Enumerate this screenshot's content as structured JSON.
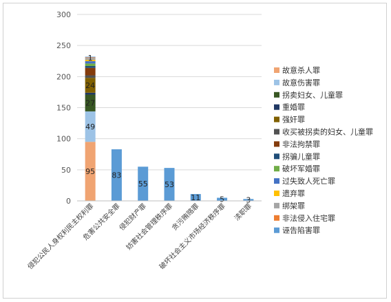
{
  "chart_data": {
    "type": "bar",
    "stacked": true,
    "ylim": [
      0,
      300
    ],
    "yticks": [
      0,
      50,
      100,
      150,
      200,
      250,
      300
    ],
    "grid": true,
    "legend_position": "right",
    "categories": [
      "侵犯公民人身权利民主权利罪",
      "危害公共安全罪",
      "侵犯财产罪",
      "妨害社会管理秩序罪",
      "贪污贿赂罪",
      "破坏社会主义市场经济秩序罪",
      "渎职罪"
    ],
    "simple_bars": {
      "values": [
        null,
        83,
        55,
        53,
        11,
        5,
        3
      ],
      "labels": [
        "",
        "83",
        "55",
        "53",
        "11",
        "5",
        "3"
      ],
      "color": "#5b9bd5"
    },
    "series": [
      {
        "name": "故意杀人罪",
        "color": "#f0a472",
        "values": [
          95,
          null,
          null,
          null,
          null,
          null,
          null
        ],
        "label": "95"
      },
      {
        "name": "故意伤害罪",
        "color": "#9dc3e6",
        "values": [
          49,
          null,
          null,
          null,
          null,
          null,
          null
        ],
        "label": "49"
      },
      {
        "name": "拐卖妇女、儿童罪",
        "color": "#385723",
        "values": [
          27,
          null,
          null,
          null,
          null,
          null,
          null
        ],
        "label": "27"
      },
      {
        "name": "重婚罪",
        "color": "#203864",
        "values": [
          3,
          null,
          null,
          null,
          null,
          null,
          null
        ],
        "label": ""
      },
      {
        "name": "强奸罪",
        "color": "#806000",
        "values": [
          24,
          null,
          null,
          null,
          null,
          null,
          null
        ],
        "label": "24"
      },
      {
        "name": "收买被拐卖的妇女、儿童罪",
        "color": "#525252",
        "values": [
          4,
          null,
          null,
          null,
          null,
          null,
          null
        ],
        "label": ""
      },
      {
        "name": "非法拘禁罪",
        "color": "#843c0c",
        "values": [
          12,
          null,
          null,
          null,
          null,
          null,
          null
        ],
        "label": ""
      },
      {
        "name": "拐骗儿童罪",
        "color": "#1f4e79",
        "values": [
          3,
          null,
          null,
          null,
          null,
          null,
          null
        ],
        "label": ""
      },
      {
        "name": "破坏军婚罪",
        "color": "#70ad47",
        "values": [
          4,
          null,
          null,
          null,
          null,
          null,
          null
        ],
        "label": ""
      },
      {
        "name": "过失致人死亡罪",
        "color": "#4472c4",
        "values": [
          4,
          null,
          null,
          null,
          null,
          null,
          null
        ],
        "label": ""
      },
      {
        "name": "遗弃罪",
        "color": "#ffc000",
        "values": [
          2,
          null,
          null,
          null,
          null,
          null,
          null
        ],
        "label": ""
      },
      {
        "name": "绑架罪",
        "color": "#a5a5a5",
        "values": [
          3,
          null,
          null,
          null,
          null,
          null,
          null
        ],
        "label": ""
      },
      {
        "name": "非法侵入住宅罪",
        "color": "#ed7d31",
        "values": [
          1,
          null,
          null,
          null,
          null,
          null,
          null
        ],
        "label": "1"
      },
      {
        "name": "诬告陷害罪",
        "color": "#5b9bd5",
        "values": [
          1,
          null,
          null,
          null,
          null,
          null,
          null
        ],
        "label": ""
      }
    ]
  }
}
